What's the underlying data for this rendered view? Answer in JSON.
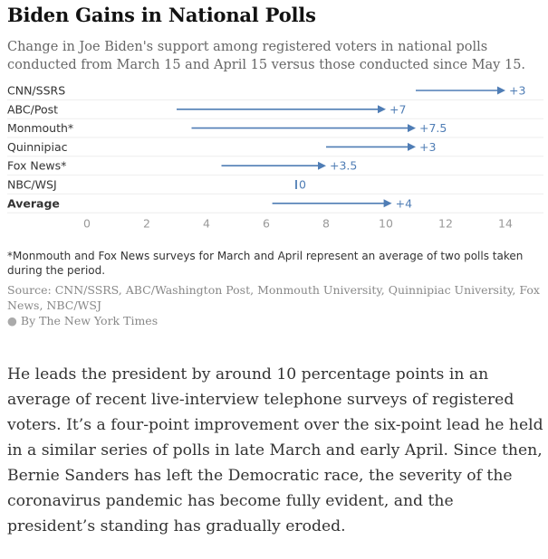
{
  "chart_data": {
    "type": "arrow-range",
    "title": "Biden Gains in National Polls",
    "subtitle": "Change in Joe Biden's support among registered voters in national polls conducted from March 15 and April 15 versus those conducted since May 15.",
    "xlim": [
      0,
      14
    ],
    "xticks": [
      0,
      2,
      4,
      6,
      8,
      10,
      12,
      14
    ],
    "series_color": "#4f7db5",
    "rows": [
      {
        "label": "CNN/SSRS",
        "start": 11,
        "end": 14,
        "change": "+3",
        "bold": false
      },
      {
        "label": "ABC/Post",
        "start": 3,
        "end": 10,
        "change": "+7",
        "bold": false
      },
      {
        "label": "Monmouth*",
        "start": 3.5,
        "end": 11,
        "change": "+7.5",
        "bold": false
      },
      {
        "label": "Quinnipiac",
        "start": 8,
        "end": 11,
        "change": "+3",
        "bold": false
      },
      {
        "label": "Fox News*",
        "start": 4.5,
        "end": 8,
        "change": "+3.5",
        "bold": false
      },
      {
        "label": "NBC/WSJ",
        "start": 7,
        "end": 7,
        "change": "0",
        "bold": false
      },
      {
        "label": "Average",
        "start": 6.2,
        "end": 10.2,
        "change": "+4",
        "bold": true
      }
    ]
  },
  "note": "*Monmouth and Fox News surveys for March and April represent an average of two polls taken during the period.",
  "source": "Source: CNN/SSRS, ABC/Washington Post, Monmouth University, Quinnipiac University, Fox News, NBC/WSJ",
  "credit": "By The New York Times",
  "article": {
    "paragraph": "He leads the president by around 10 percentage points in an average of recent live-interview telephone surveys of registered voters. It’s a four-point improvement over the six-point lead he held in a similar series of polls in late March and early April. Since then, Bernie Sanders has left the Democratic race, the severity of the coronavirus pandemic has become fully evident, and the president’s standing has gradually eroded."
  }
}
